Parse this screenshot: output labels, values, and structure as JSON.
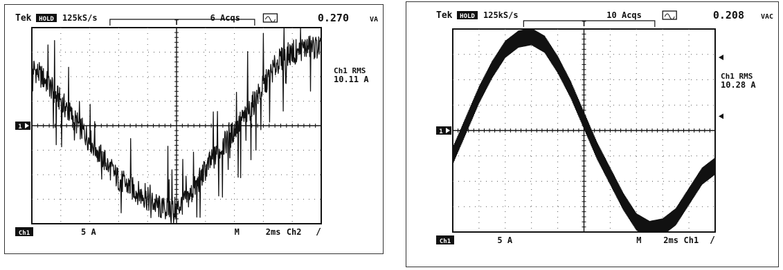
{
  "scopes": [
    {
      "brand": "Tek",
      "run_state": "HOLD",
      "sample_rate": "125kS/s",
      "acquisitions": "6 Acqs",
      "readout_value": "0.270",
      "readout_unit": "VA",
      "meas_label": "Ch1 RMS",
      "meas_value": "10.11 A",
      "ch_marker": "1",
      "ch_badge": "Ch1",
      "vscale": "5 A",
      "timebase_mode": "M",
      "timebase": "2ms",
      "trigger_src": "Ch2",
      "trigger_slope": "/"
    },
    {
      "brand": "Tek",
      "run_state": "HOLD",
      "sample_rate": "125kS/s",
      "acquisitions": "10 Acqs",
      "readout_value": "0.208",
      "readout_unit": "VAC",
      "meas_label": "Ch1 RMS",
      "meas_value": "10.28 A",
      "ch_marker": "1",
      "ch_badge": "Ch1",
      "vscale": "5 A",
      "timebase_mode": "M",
      "timebase": "2ms",
      "trigger_src": "Ch1",
      "trigger_slope": "/"
    }
  ],
  "chart_data": [
    {
      "type": "line",
      "xlabel": "",
      "ylabel": "",
      "xlim": [
        0,
        20
      ],
      "ylim": [
        -20,
        20
      ],
      "grid": true,
      "series": [
        {
          "x": [
            0,
            1,
            2,
            3,
            4,
            5,
            6,
            7,
            8,
            9,
            10,
            11,
            12,
            13,
            14,
            15,
            16,
            17,
            18,
            19,
            20
          ],
          "values": [
            12,
            9,
            5,
            1,
            -3,
            -7,
            -11,
            -13,
            -15,
            -17,
            -17,
            -14,
            -9,
            -5,
            -1,
            3,
            8,
            13,
            15,
            16,
            16
          ]
        }
      ]
    },
    {
      "type": "line",
      "xlabel": "",
      "ylabel": "",
      "xlim": [
        0,
        20
      ],
      "ylim": [
        -20,
        20
      ],
      "grid": true,
      "series": [
        {
          "x": [
            0,
            1,
            2,
            3,
            4,
            5,
            6,
            7,
            8,
            9,
            10,
            11,
            12,
            13,
            14,
            15,
            16,
            17,
            18,
            19,
            20
          ],
          "values": [
            -5,
            1,
            7,
            12,
            16,
            18,
            18.5,
            17,
            13,
            8,
            2,
            -4,
            -9,
            -14,
            -18,
            -19.5,
            -19,
            -17,
            -13,
            -9,
            -7
          ]
        }
      ]
    }
  ]
}
